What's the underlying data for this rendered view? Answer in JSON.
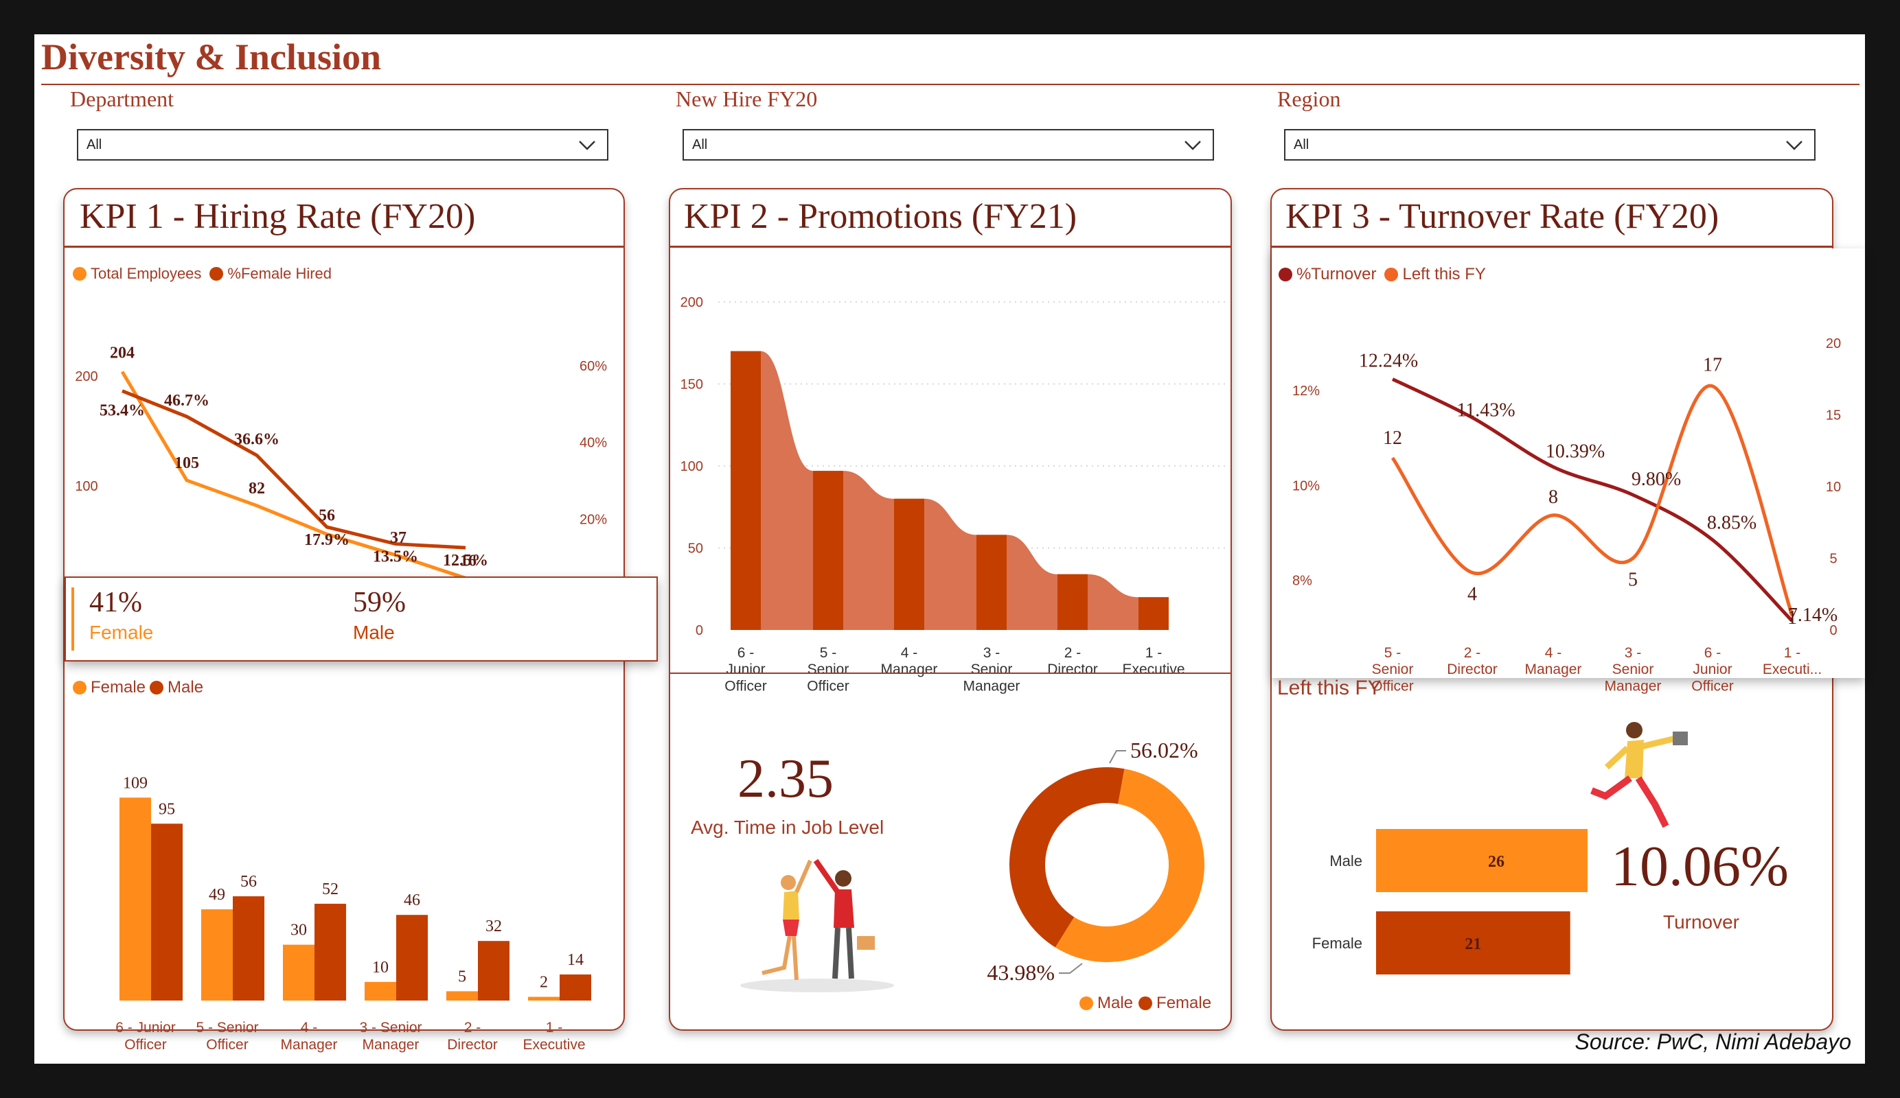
{
  "header": {
    "title": "Diversity & Inclusion",
    "source": "Source: PwC, Nimi Adebayo"
  },
  "filters": [
    {
      "label": "Department",
      "value": "All"
    },
    {
      "label": "New Hire FY20",
      "value": "All"
    },
    {
      "label": "Region",
      "value": "All"
    }
  ],
  "colors": {
    "orange": "#ff8c1a",
    "rust": "#c43e00",
    "maroon": "#9e1a1a",
    "brown": "#6b1f12",
    "area": "#d97352"
  },
  "kpi1": {
    "title": "KPI 1 - Hiring Rate (FY20)",
    "female_share": "41%",
    "female_label": "Female",
    "male_share": "59%",
    "male_label": "Male"
  },
  "kpi2": {
    "title": "KPI 2 - Promotions (FY21)",
    "avg_value": "2.35",
    "avg_label": "Avg. Time in Job Level"
  },
  "kpi3": {
    "title": "KPI 3 - Turnover Rate (FY20)",
    "left_title": "Left this FY",
    "turnover_value": "10.06%",
    "turnover_label": "Turnover"
  },
  "chart_data": [
    {
      "id": "hiring",
      "type": "line",
      "categories": [
        "6 - Junior Officer",
        "5 - Senior Officer",
        "4 - Manager",
        "3 - Senior Manager",
        "2 - Director",
        "1 - Executive"
      ],
      "series": [
        {
          "name": "Total Employees",
          "axis": "left",
          "values": [
            204,
            105,
            82,
            56,
            37,
            16
          ],
          "labels": [
            "204",
            "105",
            "82",
            "56",
            "37",
            "16"
          ]
        },
        {
          "name": "%Female Hired",
          "axis": "right",
          "values": [
            53.4,
            46.7,
            36.6,
            17.9,
            13.5,
            12.5
          ],
          "labels": [
            "53.4%",
            "46.7%",
            "36.6%",
            "17.9%",
            "13.5%",
            "12.5%"
          ]
        }
      ],
      "y_left": {
        "ticks": [
          "0",
          "100",
          "200"
        ],
        "range": [
          0,
          220
        ]
      },
      "y_right": {
        "ticks": [
          "20%",
          "40%",
          "60%"
        ],
        "range": [
          0,
          63
        ]
      },
      "legend": "top-left"
    },
    {
      "id": "hires-gender",
      "type": "bar",
      "categories": [
        "6 - Junior Officer",
        "5 - Senior Officer",
        "4 - Manager",
        "3 - Senior Manager",
        "2 - Director",
        "1 - Executive"
      ],
      "series": [
        {
          "name": "Female",
          "values": [
            109,
            49,
            30,
            10,
            5,
            2
          ]
        },
        {
          "name": "Male",
          "values": [
            95,
            56,
            52,
            46,
            32,
            14
          ]
        }
      ],
      "ylim": [
        0,
        115
      ],
      "legend": "top-left"
    },
    {
      "id": "promotions",
      "type": "bar",
      "categories": [
        "6 - Junior Officer",
        "5 - Senior Officer",
        "4 - Manager",
        "3 - Senior Manager",
        "2 - Director",
        "1 - Executive"
      ],
      "values": [
        170,
        97,
        80,
        58,
        34,
        20
      ],
      "y_ticks": [
        "0",
        "50",
        "100",
        "150",
        "200"
      ],
      "ylim": [
        0,
        200
      ],
      "grid": true
    },
    {
      "id": "gender-split",
      "type": "pie",
      "labels": [
        "Male",
        "Female"
      ],
      "values": [
        56.02,
        43.98
      ],
      "value_labels": [
        "56.02%",
        "43.98%"
      ],
      "legend": "bottom-right"
    },
    {
      "id": "turnover",
      "type": "line",
      "categories": [
        "5 - Senior Officer",
        "2 - Director",
        "4 - Manager",
        "3 - Senior Manager",
        "6 - Junior Officer",
        "1 - Executi..."
      ],
      "series": [
        {
          "name": "%Turnover",
          "axis": "left",
          "values": [
            12.24,
            11.43,
            10.39,
            9.8,
            8.85,
            7.14
          ],
          "labels": [
            "12.24%",
            "11.43%",
            "10.39%",
            "9.80%",
            "8.85%",
            "7.14%"
          ]
        },
        {
          "name": "Left this FY",
          "axis": "right",
          "values": [
            12,
            4,
            8,
            5,
            17,
            1
          ],
          "labels": [
            "12",
            "4",
            "8",
            "5",
            "17",
            "1"
          ]
        }
      ],
      "y_left": {
        "ticks": [
          "8%",
          "10%",
          "12%"
        ],
        "range": [
          6.95,
          13.0
        ]
      },
      "y_right": {
        "ticks": [
          "0",
          "5",
          "10",
          "15",
          "20"
        ],
        "range": [
          0,
          20
        ]
      },
      "legend": "top-left"
    },
    {
      "id": "left-gender",
      "type": "bar",
      "orientation": "horizontal",
      "categories": [
        "Male",
        "Female"
      ],
      "values": [
        26,
        21
      ],
      "xlim": [
        0,
        26
      ]
    }
  ]
}
